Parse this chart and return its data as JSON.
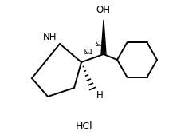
{
  "background_color": "#ffffff",
  "line_color": "#000000",
  "line_width": 1.4,
  "font_size": 8.5,
  "hcl_label": "HCl",
  "oh_label": "OH",
  "nh_label": "NH",
  "h_label": "H",
  "stereo1": "&1",
  "stereo2": "&1",
  "title_fontsize": 9
}
